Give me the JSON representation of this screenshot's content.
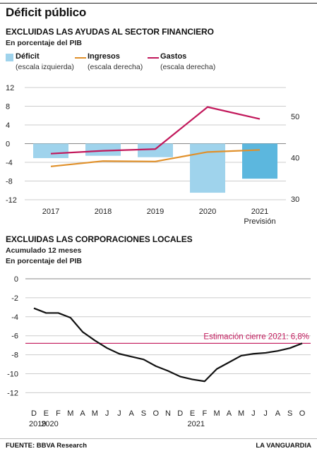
{
  "title": "Déficit público",
  "footer": {
    "source": "FUENTE: BBVA Research",
    "brand": "LA VANGUARDIA"
  },
  "colors": {
    "deficit_bar": "#9fd3ec",
    "deficit_bar_2021": "#5cb7de",
    "ingresos": "#e0902a",
    "gastos": "#c2185b",
    "estimation_line": "#c2185b",
    "line2": "#111111",
    "grid": "#cccccc"
  },
  "chart_data": [
    {
      "type": "bar+line",
      "title": "EXCLUIDAS LAS AYUDAS AL SECTOR FINANCIERO",
      "subtitle": "En porcentaje del PIB",
      "categories": [
        "2017",
        "2018",
        "2019",
        "2020",
        "2021"
      ],
      "category_sublabels": [
        "",
        "",
        "",
        "",
        "Previsión"
      ],
      "legend": [
        {
          "name": "Déficit",
          "desc": "(escala izquierda)"
        },
        {
          "name": "Ingresos",
          "desc": "(escala derecha)"
        },
        {
          "name": "Gastos",
          "desc": "(escala derecha)"
        }
      ],
      "left_axis": {
        "ticks": [
          12,
          8,
          4,
          0,
          -4,
          -8,
          -12
        ],
        "ylim": [
          -12,
          12
        ]
      },
      "right_axis": {
        "ticks": [
          50,
          40,
          30
        ],
        "ylim": [
          30,
          56
        ]
      },
      "series": [
        {
          "name": "Déficit",
          "axis": "left",
          "values": [
            -3.1,
            -2.6,
            -2.9,
            -10.5,
            -7.5
          ]
        },
        {
          "name": "Ingresos",
          "axis": "right",
          "values": [
            37.9,
            39.2,
            39.1,
            41.4,
            41.9
          ]
        },
        {
          "name": "Gastos",
          "axis": "right",
          "values": [
            41.0,
            41.7,
            42.1,
            52.3,
            49.4
          ]
        }
      ]
    },
    {
      "type": "line",
      "title": "EXCLUIDAS LAS CORPORACIONES LOCALES",
      "subtitle_1": "Acumulado 12 meses",
      "subtitle_2": "En porcentaje del PIB",
      "y_ticks": [
        0,
        -2,
        -4,
        -6,
        -8,
        -10,
        -12
      ],
      "ylim": [
        -13.5,
        0
      ],
      "x_months": [
        "D",
        "E",
        "F",
        "M",
        "A",
        "M",
        "J",
        "J",
        "A",
        "S",
        "O",
        "N",
        "D",
        "E",
        "F",
        "M",
        "A",
        "M",
        "J",
        "J",
        "A",
        "S",
        "O"
      ],
      "x_years": [
        {
          "label": "2019",
          "month_index": 0
        },
        {
          "label": "2020",
          "month_index": 1
        },
        {
          "label": "2021",
          "month_index": 13
        }
      ],
      "values": [
        -3.1,
        -3.6,
        -3.6,
        -4.1,
        -5.6,
        -6.5,
        -7.3,
        -7.9,
        -8.2,
        -8.5,
        -9.2,
        -9.7,
        -10.3,
        -10.6,
        -10.8,
        -9.5,
        -8.8,
        -8.1,
        -7.9,
        -7.8,
        -7.6,
        -7.3,
        -6.8
      ],
      "reference": {
        "label": "Estimación cierre 2021: 6,8%",
        "value": -6.8
      }
    }
  ]
}
